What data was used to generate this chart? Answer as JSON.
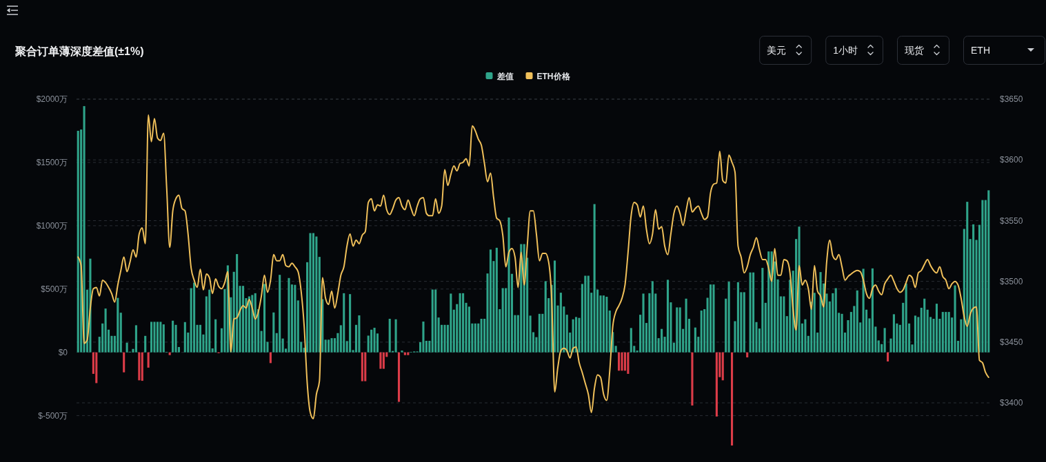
{
  "chart_data": {
    "type": "bar",
    "title": "聚合订单薄深度差值(±1%)",
    "categories": [
      null,
      null,
      null,
      null,
      null,
      null,
      null,
      null,
      null,
      null,
      null,
      null,
      null,
      null,
      null,
      null,
      null,
      null,
      null,
      null,
      null,
      null,
      null,
      null,
      null,
      null,
      null,
      null,
      null,
      null,
      null,
      null,
      null,
      null,
      null,
      null,
      null,
      null,
      null,
      null,
      null,
      null,
      null,
      null,
      null,
      null,
      null,
      null,
      null,
      null,
      null,
      null,
      null,
      null,
      null,
      null,
      null,
      null,
      null,
      null,
      null,
      null,
      null,
      null,
      null,
      null,
      null,
      null,
      null,
      null,
      null,
      null,
      null,
      null,
      null,
      null,
      null,
      null,
      null,
      null,
      null,
      null,
      null,
      null,
      null,
      null,
      null,
      null,
      null,
      null,
      null,
      null,
      null,
      null,
      null,
      null,
      null,
      null,
      null,
      null,
      null,
      null,
      null,
      null,
      null,
      null,
      null,
      null,
      null,
      null,
      null,
      null,
      null,
      null,
      null,
      null,
      null,
      null,
      null,
      null,
      null,
      null,
      null,
      null,
      null,
      null,
      null,
      null,
      null,
      null,
      null,
      null,
      null,
      null,
      null,
      null,
      null,
      null,
      null,
      null,
      null,
      null,
      null,
      null,
      null,
      null,
      null,
      null,
      null,
      null,
      null,
      null,
      null,
      null,
      null,
      null,
      null,
      null,
      null,
      null,
      null,
      null,
      null,
      null,
      null,
      null,
      null,
      null,
      null,
      null,
      null,
      null,
      null,
      null,
      null,
      null,
      null,
      null,
      null,
      null,
      null,
      null,
      null,
      null,
      null,
      null,
      null,
      null,
      null,
      null,
      null,
      null,
      null,
      null,
      null,
      null,
      null,
      null,
      null,
      null,
      null,
      null,
      null,
      null,
      null,
      null,
      null,
      null,
      null,
      null,
      null,
      null,
      null,
      null,
      null,
      null,
      null,
      null,
      null,
      null,
      null,
      null,
      null,
      null,
      null,
      null,
      null,
      null,
      null,
      null,
      null,
      null,
      null,
      null,
      null,
      null,
      null,
      null,
      null,
      null,
      null,
      null,
      null,
      null,
      null,
      null,
      null,
      null,
      null,
      null,
      null,
      null,
      null,
      null,
      null,
      null,
      null,
      null,
      null,
      null,
      null,
      null,
      null,
      null,
      null,
      null,
      null,
      null,
      null,
      null,
      null,
      null,
      null,
      null,
      null,
      null,
      null,
      null,
      null,
      null,
      null,
      null,
      null,
      null,
      null,
      null,
      null,
      null,
      null,
      null,
      null,
      null,
      null,
      null,
      null,
      null,
      null,
      null,
      null
    ],
    "series": [
      {
        "name": "差值",
        "color": "#2fa48a",
        "values": [
          1750,
          1760,
          1945,
          495,
          740,
          -170,
          -243,
          123,
          228,
          346,
          179,
          130,
          130,
          430,
          313,
          -158,
          76,
          5,
          27,
          214,
          -221,
          -225,
          130,
          -121,
          241,
          241,
          241,
          241,
          221,
          4,
          -22,
          250,
          217,
          42,
          null,
          239,
          156,
          507,
          551,
          217,
          217,
          141,
          442,
          495,
          31,
          261,
          -7,
          190,
          500,
          687,
          435,
          636,
          776,
          525,
          525,
          428,
          442,
          453,
          467,
          341,
          169,
          540,
          83,
          -85,
          315,
          152,
          612,
          109,
          29,
          587,
          536,
          533,
          410,
          83,
          36,
          712,
          942,
          942,
          915,
          754,
          420,
          100,
          100,
          112,
          112,
          152,
          214,
          467,
          89,
          460,
          18,
          217,
          292,
          -228,
          -228,
          132,
          179,
          194,
          149,
          -130,
          -130,
          -36,
          265,
          11,
          261,
          -391,
          14,
          -22,
          -22,
          4,
          7,
          7,
          80,
          243,
          91,
          91,
          496,
          496,
          275,
          217,
          217,
          217,
          464,
          337,
          381,
          467,
          467,
          391,
          361,
          228,
          228,
          228,
          265,
          265,
          623,
          812,
          721,
          826,
          341,
          507,
          507,
          1065,
          620,
          294,
          294,
          855,
          855,
          747,
          290,
          159,
          120,
          304,
          304,
          562,
          428,
          533,
          725,
          370,
          471,
          362,
          297,
          156,
          261,
          279,
          272,
          540,
          605,
          605,
          471,
          1171,
          496,
          449,
          449,
          439,
          330,
          160,
          51,
          -145,
          -145,
          -145,
          -170,
          192,
          51,
          14,
          297,
          464,
          232,
          467,
          562,
          464,
          112,
          185,
          123,
          573,
          395,
          76,
          355,
          355,
          185,
          424,
          265,
          -420,
          196,
          123,
          330,
          341,
          431,
          536,
          536,
          -507,
          -196,
          -221,
          424,
          558,
          -736,
          246,
          554,
          475,
          475,
          -40,
          631,
          631,
          239,
          188,
          667,
          391,
          797,
          797,
          718,
          576,
          442,
          442,
          286,
          573,
          645,
          895,
          993,
          228,
          261,
          130,
          400,
          470,
          156,
          634,
          544,
          464,
          402,
          467,
          507,
          312,
          304,
          156,
          254,
          319,
          366,
          489,
          236,
          660,
          337,
          268,
          663,
          203,
          94,
          65,
          192,
          -72,
          109,
          301,
          228,
          217,
          391,
          544,
          228,
          62,
          290,
          279,
          352,
          424,
          337,
          279,
          265,
          384,
          265,
          319,
          319,
          319,
          275,
          529,
          91,
          261,
          975,
          1189,
          895,
          1011,
          888,
          1007,
          1203,
          1203,
          1280
        ],
        "colors": [
          "#2fa48a",
          "#2fa48a",
          "#2fa48a",
          "#2fa48a",
          "#2fa48a",
          "#dc3c48",
          "#dc3c48",
          "#2fa48a",
          "#2fa48a",
          "#2fa48a",
          "#2fa48a",
          "#2fa48a",
          "#2fa48a",
          "#2fa48a",
          "#2fa48a",
          "#dc3c48",
          "#2fa48a",
          "#2fa48a",
          "#2fa48a",
          "#2fa48a",
          "#dc3c48",
          "#dc3c48",
          "#2fa48a",
          "#dc3c48",
          "#2fa48a",
          "#2fa48a",
          "#2fa48a",
          "#2fa48a",
          "#2fa48a",
          "#2fa48a",
          "#dc3c48",
          "#2fa48a",
          "#2fa48a",
          "#2fa48a",
          null,
          "#2fa48a",
          "#2fa48a",
          "#2fa48a",
          "#2fa48a",
          "#2fa48a",
          "#2fa48a",
          "#2fa48a",
          "#2fa48a",
          "#2fa48a",
          "#2fa48a",
          "#2fa48a",
          "#dc3c48",
          "#2fa48a",
          "#2fa48a",
          "#2fa48a",
          "#2fa48a",
          "#2fa48a",
          "#2fa48a",
          "#2fa48a",
          "#2fa48a",
          "#2fa48a",
          "#2fa48a",
          "#2fa48a",
          "#2fa48a",
          "#2fa48a",
          "#2fa48a",
          "#2fa48a",
          "#2fa48a",
          "#dc3c48",
          "#2fa48a",
          "#2fa48a",
          "#2fa48a",
          "#2fa48a",
          "#2fa48a",
          "#2fa48a",
          "#2fa48a",
          "#2fa48a",
          "#2fa48a",
          "#2fa48a",
          "#2fa48a",
          "#2fa48a",
          "#2fa48a",
          "#2fa48a",
          "#2fa48a",
          "#2fa48a",
          "#2fa48a",
          "#2fa48a",
          "#2fa48a",
          "#2fa48a",
          "#2fa48a",
          "#2fa48a",
          "#2fa48a",
          "#2fa48a",
          "#2fa48a",
          "#2fa48a",
          "#2fa48a",
          "#2fa48a",
          "#2fa48a",
          "#dc3c48",
          "#dc3c48",
          "#2fa48a",
          "#2fa48a",
          "#2fa48a",
          "#2fa48a",
          "#dc3c48",
          "#dc3c48",
          "#dc3c48",
          "#2fa48a",
          "#2fa48a",
          "#2fa48a",
          "#dc3c48",
          "#2fa48a",
          "#dc3c48",
          "#dc3c48",
          "#2fa48a",
          "#2fa48a",
          "#2fa48a",
          "#2fa48a",
          "#2fa48a",
          "#2fa48a",
          "#2fa48a",
          "#2fa48a",
          "#2fa48a",
          "#2fa48a",
          "#2fa48a",
          "#2fa48a",
          "#2fa48a",
          "#2fa48a",
          "#2fa48a",
          "#2fa48a",
          "#2fa48a",
          "#2fa48a",
          "#2fa48a",
          "#2fa48a",
          "#2fa48a",
          "#2fa48a",
          "#2fa48a",
          "#2fa48a",
          "#2fa48a",
          "#2fa48a",
          "#2fa48a",
          "#2fa48a",
          "#2fa48a",
          "#2fa48a",
          "#2fa48a",
          "#2fa48a",
          "#2fa48a",
          "#2fa48a",
          "#2fa48a",
          "#2fa48a",
          "#2fa48a",
          "#2fa48a",
          "#2fa48a",
          "#2fa48a",
          "#2fa48a",
          "#2fa48a",
          "#2fa48a",
          "#2fa48a",
          "#2fa48a",
          "#2fa48a",
          "#2fa48a",
          "#2fa48a",
          "#2fa48a",
          "#2fa48a",
          "#2fa48a",
          "#2fa48a",
          "#2fa48a",
          "#2fa48a",
          "#2fa48a",
          "#2fa48a",
          "#2fa48a",
          "#2fa48a",
          "#2fa48a",
          "#2fa48a",
          "#2fa48a",
          "#2fa48a",
          "#2fa48a",
          "#2fa48a",
          "#2fa48a",
          "#2fa48a",
          "#2fa48a",
          "#2fa48a",
          "#dc3c48",
          "#dc3c48",
          "#dc3c48",
          "#dc3c48",
          "#2fa48a",
          "#2fa48a",
          "#2fa48a",
          "#2fa48a",
          "#2fa48a",
          "#2fa48a",
          "#2fa48a",
          "#2fa48a",
          "#2fa48a",
          "#2fa48a",
          "#2fa48a",
          "#2fa48a",
          "#2fa48a",
          "#2fa48a",
          "#2fa48a",
          "#2fa48a",
          "#2fa48a",
          "#2fa48a",
          "#2fa48a",
          "#2fa48a",
          "#dc3c48",
          "#2fa48a",
          "#2fa48a",
          "#2fa48a",
          "#2fa48a",
          "#2fa48a",
          "#2fa48a",
          "#2fa48a",
          "#dc3c48",
          "#dc3c48",
          "#dc3c48",
          "#2fa48a",
          "#2fa48a",
          "#dc3c48",
          "#2fa48a",
          "#2fa48a",
          "#2fa48a",
          "#2fa48a",
          "#dc3c48",
          "#2fa48a",
          "#2fa48a",
          "#2fa48a",
          "#2fa48a",
          "#2fa48a",
          "#2fa48a",
          "#2fa48a",
          "#2fa48a",
          "#2fa48a",
          "#2fa48a",
          "#2fa48a",
          "#2fa48a",
          "#2fa48a",
          "#2fa48a",
          "#2fa48a",
          "#2fa48a",
          "#2fa48a",
          "#2fa48a",
          "#2fa48a",
          "#2fa48a",
          "#2fa48a",
          "#2fa48a",
          "#2fa48a",
          "#2fa48a",
          "#2fa48a",
          "#2fa48a",
          "#2fa48a",
          "#2fa48a",
          "#2fa48a",
          "#2fa48a",
          "#2fa48a",
          "#2fa48a",
          "#2fa48a",
          "#2fa48a",
          "#2fa48a",
          "#2fa48a",
          "#2fa48a",
          "#2fa48a",
          "#2fa48a",
          "#2fa48a",
          "#2fa48a",
          "#2fa48a",
          "#2fa48a",
          "#2fa48a",
          "#2fa48a",
          "#dc3c48",
          "#2fa48a",
          "#2fa48a",
          "#2fa48a",
          "#2fa48a",
          "#2fa48a",
          "#2fa48a",
          "#2fa48a",
          "#2fa48a",
          "#2fa48a",
          "#2fa48a",
          "#2fa48a",
          "#2fa48a",
          "#2fa48a",
          "#2fa48a",
          "#2fa48a",
          "#2fa48a",
          "#2fa48a",
          "#2fa48a",
          "#2fa48a",
          "#2fa48a",
          "#2fa48a",
          "#2fa48a",
          "#2fa48a",
          "#2fa48a",
          "#2fa48a",
          "#2fa48a",
          "#2fa48a",
          "#2fa48a",
          "#2fa48a",
          "#2fa48a",
          "#2fa48a",
          "#2fa48a",
          "#2fa48a"
        ]
      },
      {
        "name": "ETH价格",
        "type": "line",
        "axis": "y2",
        "color": "#f0c05a",
        "values": [
          3520,
          3513,
          3449,
          3452,
          3478,
          3494,
          3495,
          3488,
          3501,
          3499,
          3495,
          3490,
          3483,
          3497,
          3509,
          3520,
          3508,
          3516,
          3526,
          3520,
          3539,
          3544,
          3531,
          3637,
          3615,
          3634,
          3618,
          3616,
          3622,
          3577,
          3528,
          3558,
          3568,
          3571,
          3560,
          3558,
          3539,
          3511,
          3501,
          3495,
          3510,
          3493,
          3506,
          3503,
          3490,
          3502,
          3496,
          3494,
          3499,
          3508,
          3442,
          3469,
          3470,
          3476,
          3480,
          3478,
          3485,
          3478,
          3469,
          3475,
          3488,
          3505,
          3491,
          3501,
          3522,
          3517,
          3517,
          3522,
          3513,
          3512,
          3515,
          3512,
          3508,
          3492,
          3463,
          3416,
          3392,
          3387,
          3407,
          3418,
          3503,
          3486,
          3481,
          3492,
          3478,
          3490,
          3505,
          3512,
          3529,
          3539,
          3529,
          3534,
          3531,
          3538,
          3541,
          3565,
          3568,
          3558,
          3563,
          3562,
          3571,
          3559,
          3555,
          3560,
          3567,
          3569,
          3562,
          3559,
          3567,
          3560,
          3554,
          3562,
          3568,
          3569,
          3556,
          3554,
          3554,
          3568,
          3556,
          3562,
          3592,
          3579,
          3588,
          3595,
          3591,
          3597,
          3598,
          3601,
          3595,
          3628,
          3624,
          3617,
          3612,
          3597,
          3582,
          3589,
          3569,
          3552,
          3550,
          3538,
          3512,
          3524,
          3527,
          3520,
          3495,
          3524,
          3497,
          3529,
          3558,
          3558,
          3539,
          3517,
          3523,
          3523,
          3516,
          3486,
          3409,
          3429,
          3443,
          3445,
          3443,
          3437,
          3445,
          3446,
          3433,
          3425,
          3416,
          3407,
          3392,
          3412,
          3423,
          3421,
          3407,
          3402,
          3426,
          3463,
          3475,
          3480,
          3486,
          3497,
          3524,
          3554,
          3565,
          3563,
          3553,
          3562,
          3543,
          3531,
          3539,
          3559,
          3543,
          3545,
          3529,
          3522,
          3539,
          3556,
          3562,
          3556,
          3546,
          3558,
          3569,
          3557,
          3560,
          3562,
          3556,
          3551,
          3553,
          3573,
          3580,
          3581,
          3607,
          3583,
          3581,
          3604,
          3598,
          3590,
          3529,
          3520,
          3507,
          3512,
          3522,
          3528,
          3536,
          3526,
          3518,
          3518,
          3511,
          3500,
          3527,
          3505,
          3505,
          3518,
          3517,
          3507,
          3477,
          3460,
          3513,
          3497,
          3501,
          3494,
          3477,
          3513,
          3492,
          3488,
          3479,
          3516,
          3534,
          3521,
          3518,
          3522,
          3512,
          3501,
          3504,
          3506,
          3508,
          3509,
          3508,
          3501,
          3490,
          3486,
          3494,
          3497,
          3492,
          3489,
          3498,
          3502,
          3505,
          3500,
          3494,
          3491,
          3493,
          3499,
          3505,
          3503,
          3495,
          3507,
          3509,
          3514,
          3518,
          3513,
          3509,
          3507,
          3512,
          3504,
          3501,
          3494,
          3498,
          3500,
          3497,
          3486,
          3471,
          3463,
          3473,
          3478,
          3479,
          3435,
          3433,
          3425,
          3421
        ]
      }
    ],
    "ylim": [
      -850,
      2000
    ],
    "yticks": [
      {
        "value": -500,
        "label": "$-500万"
      },
      {
        "value": 0,
        "label": "$0"
      },
      {
        "value": 500,
        "label": "$500万"
      },
      {
        "value": 1000,
        "label": "$1000万"
      },
      {
        "value": 1500,
        "label": "$1500万"
      },
      {
        "value": 2000,
        "label": "$2000万"
      }
    ],
    "y2lim": [
      3353,
      3650
    ],
    "y2ticks": [
      {
        "value": 3400,
        "label": "$3400"
      },
      {
        "value": 3450,
        "label": "$3450"
      },
      {
        "value": 3500,
        "label": "$3500"
      },
      {
        "value": 3550,
        "label": "$3550"
      },
      {
        "value": 3600,
        "label": "$3600"
      },
      {
        "value": 3650,
        "label": "$3650"
      }
    ],
    "grid": true,
    "legend": "top",
    "annotations": [
      "美元",
      "1小时",
      "现货",
      "ETH"
    ]
  }
}
